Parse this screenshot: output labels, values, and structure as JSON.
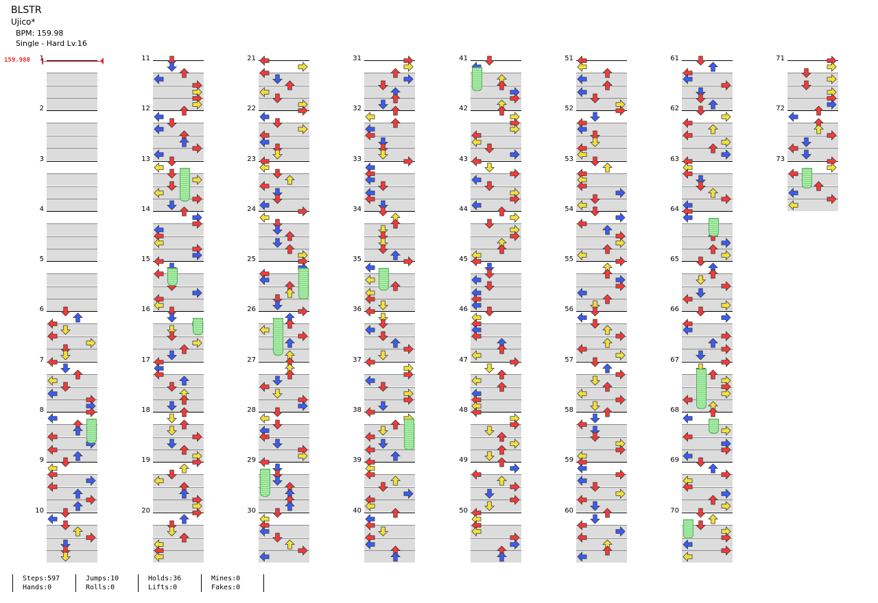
{
  "song": {
    "title": "BLSTR",
    "artist": "Ujico*",
    "bpm_text": "BPM: 159.98",
    "difficulty_text": "Single - Hard  Lv.16"
  },
  "bpm_marker": "159.980",
  "colors": {
    "red": "#f23a3a",
    "blue": "#3a5cf2",
    "yellow": "#f2e03a",
    "hold": "#8fe08f",
    "outline": "#333333",
    "band": "#dcdcdc"
  },
  "measure_numbers": [
    "1",
    "2",
    "3",
    "4",
    "5",
    "6",
    "7",
    "8",
    "9",
    "10",
    "11",
    "12",
    "13",
    "14",
    "15",
    "16",
    "17",
    "18",
    "19",
    "20",
    "21",
    "22",
    "23",
    "24",
    "25",
    "26",
    "27",
    "28",
    "29",
    "30",
    "31",
    "32",
    "33",
    "34",
    "35",
    "36",
    "37",
    "38",
    "39",
    "40",
    "41",
    "42",
    "43",
    "44",
    "45",
    "46",
    "47",
    "48",
    "49",
    "50",
    "51",
    "52",
    "53",
    "54",
    "55",
    "56",
    "57",
    "58",
    "59",
    "60",
    "61",
    "62",
    "63",
    "64",
    "65",
    "66",
    "67",
    "68",
    "69",
    "70",
    "71",
    "72",
    "73"
  ],
  "stats": [
    {
      "top": "Steps:597",
      "bottom": "Hands:0"
    },
    {
      "top": "Jumps:10",
      "bottom": "Rolls:0"
    },
    {
      "top": "Holds:36",
      "bottom": "Lifts:0"
    },
    {
      "top": "Mines:0",
      "bottom": "Fakes:0"
    }
  ]
}
